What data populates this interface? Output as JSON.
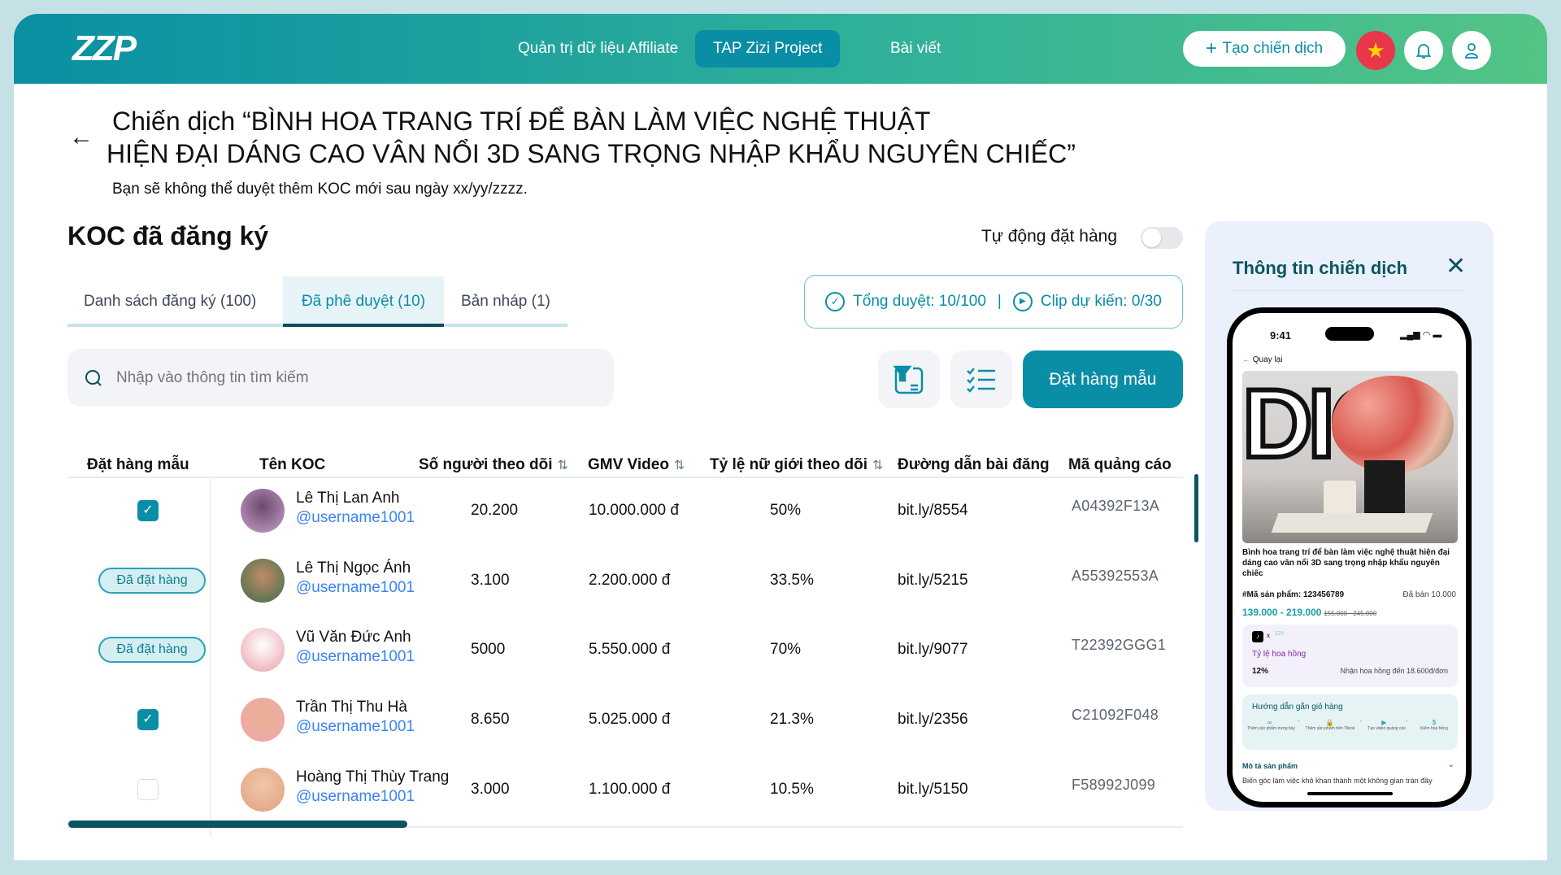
{
  "header": {
    "logo": "ZZP",
    "nav": [
      {
        "label": "Quản trị dữ liệu Affiliate"
      },
      {
        "label": "TAP Zizi Project",
        "active": true
      },
      {
        "label": "Bài viết"
      }
    ],
    "create_button": "Tạo chiến dịch",
    "icons": [
      "flag-vietnam-icon",
      "bell-icon",
      "user-icon"
    ]
  },
  "campaign": {
    "title_line1": "Chiến dịch “BÌNH HOA TRANG TRÍ ĐỂ BÀN LÀM VIỆC NGHỆ THUẬT",
    "title_line2": "HIỆN ĐẠI DÁNG CAO VÂN NỔI 3D SANG TRỌNG NHẬP KHẨU NGUYÊN CHIẾC”",
    "subtitle": "Bạn sẽ không thể duyệt thêm KOC mới sau ngày xx/yy/zzzz."
  },
  "section": {
    "title": "KOC đã đăng ký",
    "auto_order_label": "Tự động đặt hàng",
    "auto_order_on": false,
    "tabs": [
      {
        "label": "Danh sách đăng ký (100)"
      },
      {
        "label": "Đã phê duyệt (10)",
        "active": true
      },
      {
        "label": "Bản nháp (1)"
      }
    ],
    "stats": {
      "approved": "Tổng duyệt: 10/100",
      "clips": "Clip dự kiến: 0/30"
    },
    "search_placeholder": "Nhập vào thông tin tìm kiếm",
    "order_sample_button": "Đặt hàng mẫu"
  },
  "table": {
    "headers": [
      "Đặt hàng mẫu",
      "Tên KOC",
      "Số người theo dõi",
      "GMV Video",
      "Tỷ lệ nữ giới theo dõi",
      "Đường dẫn bài đăng",
      "Mã quảng cáo"
    ],
    "rows": [
      {
        "status": "checked",
        "name": "Lê Thị Lan Anh",
        "username": "@username1001",
        "followers": "20.200",
        "gmv": "10.000.000 đ",
        "female": "50%",
        "link": "bit.ly/8554",
        "code": "A04392F13A"
      },
      {
        "status": "Đã đặt hàng",
        "name": "Lê Thị Ngọc Ánh",
        "username": "@username1001",
        "followers": "3.100",
        "gmv": "2.200.000 đ",
        "female": "33.5%",
        "link": "bit.ly/5215",
        "code": "A55392553A"
      },
      {
        "status": "Đã đặt hàng",
        "name": "Vũ Văn Đức Anh",
        "username": "@username1001",
        "followers": "5000",
        "gmv": "5.550.000 đ",
        "female": "70%",
        "link": "bit.ly/9077",
        "code": "T22392GGG1"
      },
      {
        "status": "checked",
        "name": "Trần Thị Thu Hà",
        "username": "@username1001",
        "followers": "8.650",
        "gmv": "5.025.000 đ",
        "female": "21.3%",
        "link": "bit.ly/2356",
        "code": "C21092F048"
      },
      {
        "status": "unchecked",
        "name": "Hoàng Thị Thùy Trang",
        "username": "@username1001",
        "followers": "3.000",
        "gmv": "1.100.000 đ",
        "female": "10.5%",
        "link": "bit.ly/5150",
        "code": "F58992J099"
      }
    ]
  },
  "panel": {
    "title": "Thông tin chiến dịch",
    "phone": {
      "time": "9:41",
      "back": "Quay lại",
      "image_text": "DIO",
      "product_name": "Bình hoa trang trí để bàn làm việc nghệ thuật hiện đại dáng cao vân nổi 3D sang trọng nhập khẩu nguyên chiếc",
      "sku": "#Mã sản phẩm: 123456789",
      "sold": "Đã bán 10.000",
      "price": "139.000 - 219.000",
      "old_price": "155.000 - 245.000",
      "x": "x",
      "zzp": "ZZP",
      "commission_label": "Tỷ lệ hoa hồng",
      "commission_rate": "12%",
      "commission_note": "Nhận hoa hồng đến 18.600đ/đơn",
      "guide_title": "Hướng dẫn gắn giỏ hàng",
      "steps": [
        "Thêm sản phẩm trưng bày",
        "Thêm sản phẩm trên Tiktok",
        "Tạo video quảng cáo",
        "Kiếm hoa hồng"
      ],
      "desc_title": "Mô tả sản phẩm",
      "desc": "Biến góc làm việc khô khan thành một không gian tràn đầy"
    }
  },
  "colors": {
    "primary": "#0a8ea6",
    "header_start": "#0a8fa3",
    "header_end": "#52c485",
    "link": "#3b82f6"
  }
}
